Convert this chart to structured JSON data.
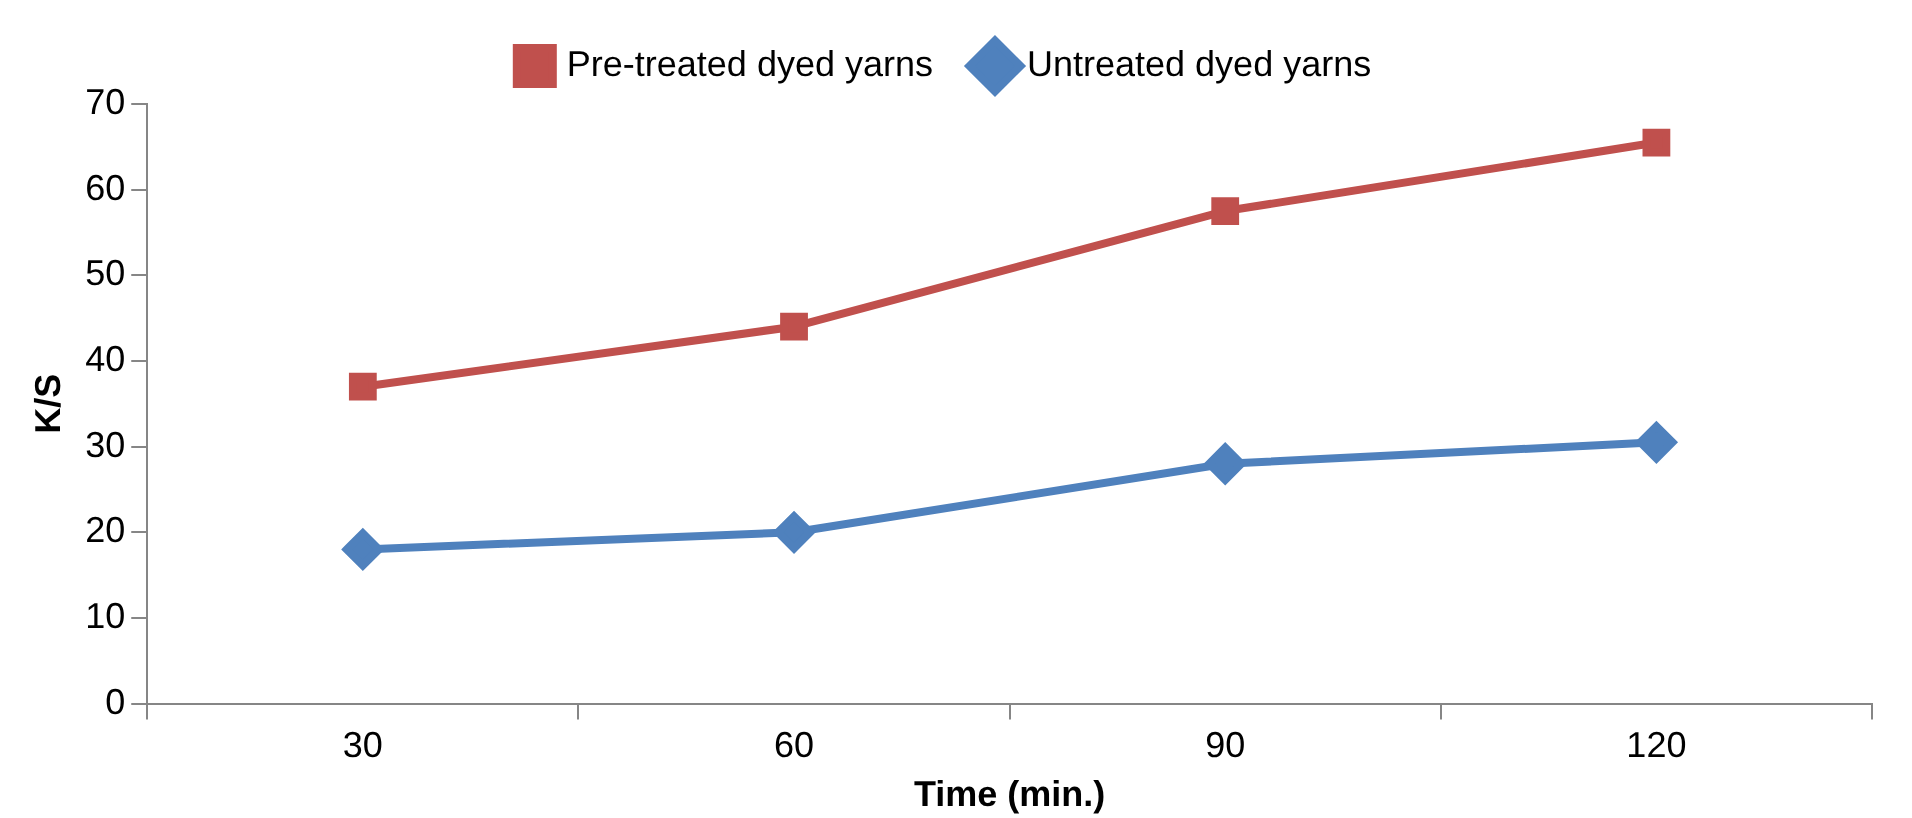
{
  "chart_data": {
    "type": "line",
    "xlabel": "Time (min.)",
    "ylabel": "K/S",
    "categories": [
      "30",
      "60",
      "90",
      "120"
    ],
    "series": [
      {
        "name": "Pre-treated dyed yarns",
        "color": "#c0504d",
        "marker": "square",
        "values": [
          37,
          44,
          57.5,
          65.5
        ]
      },
      {
        "name": "Untreated dyed yarns",
        "color": "#4f81bd",
        "marker": "diamond",
        "values": [
          18,
          20,
          28,
          30.5
        ]
      }
    ],
    "ylim": [
      0,
      70
    ],
    "yticks": [
      0,
      10,
      20,
      30,
      40,
      50,
      60,
      70
    ],
    "grid": false,
    "legend": "top",
    "line_style": "solid"
  }
}
